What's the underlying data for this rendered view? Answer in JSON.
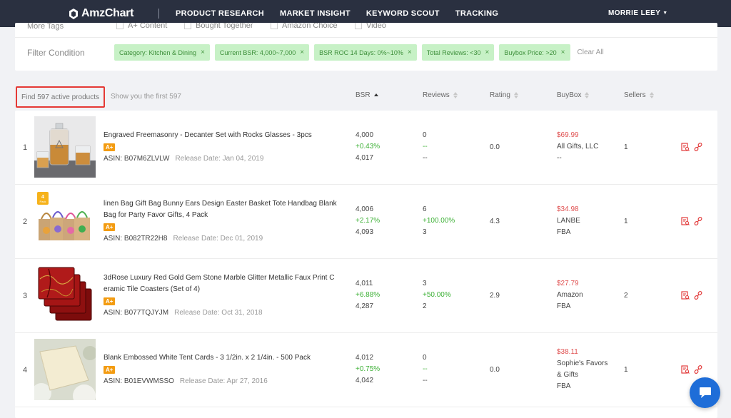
{
  "nav": {
    "logo": "AmzChart",
    "items": [
      "PRODUCT RESEARCH",
      "MARKET INSIGHT",
      "KEYWORD SCOUT",
      "TRACKING"
    ],
    "user": "MORRIE LEEY"
  },
  "filters": {
    "more_tags_label": "More Tags",
    "more_tags": [
      "A+ Content",
      "Bought Together",
      "Amazon Choice",
      "Video"
    ],
    "condition_label": "Filter Condition",
    "chips": [
      "Category: Kitchen & Dining",
      "Current BSR: 4,000~7,000",
      "BSR ROC 14 Days: 0%~10%",
      "Total Reviews: <30",
      "Buybox Price: >20"
    ],
    "clear_all": "Clear All"
  },
  "results": {
    "found": "Find 597 active products",
    "show_first": "Show you the first 597"
  },
  "columns": {
    "bsr": "BSR",
    "reviews": "Reviews",
    "rating": "Rating",
    "buybox": "BuyBox",
    "sellers": "Sellers"
  },
  "products": [
    {
      "rank": "1",
      "title_lines": [
        "Engraved Freemasonry - Decanter Set with Rocks Glasses - 3pcs"
      ],
      "badge": "A+",
      "asin": "ASIN: B07M6ZLVLW",
      "release": "Release Date: Jan 04, 2019",
      "bsr": [
        "4,000",
        "+0.43%",
        "4,017"
      ],
      "reviews": [
        "0",
        "--",
        "--"
      ],
      "rating": "0.0",
      "buybox": [
        "$69.99",
        "All Gifts, LLC",
        "--"
      ],
      "sellers": "1"
    },
    {
      "rank": "2",
      "title_lines": [
        "linen Bag Gift Bag Bunny Ears Design Easter Basket Tote Handbag Blank",
        "Bag for Party Favor Gifts, 4 Pack"
      ],
      "badge": "A+",
      "asin": "ASIN: B082TR22H8",
      "release": "Release Date: Dec 01, 2019",
      "bsr": [
        "4,006",
        "+2.17%",
        "4,093"
      ],
      "reviews": [
        "6",
        "+100.00%",
        "3"
      ],
      "rating": "4.3",
      "buybox": [
        "$34.98",
        "LANBE",
        "FBA"
      ],
      "sellers": "1",
      "thumb_badge": "4 Pack"
    },
    {
      "rank": "3",
      "title_lines": [
        "3dRose Luxury Red Gold Gem Stone Marble Glitter Metallic Faux Print C",
        "eramic Tile Coasters (Set of 4)"
      ],
      "badge": "A+",
      "asin": "ASIN: B077TQJYJM",
      "release": "Release Date: Oct 31, 2018",
      "bsr": [
        "4,011",
        "+6.88%",
        "4,287"
      ],
      "reviews": [
        "3",
        "+50.00%",
        "2"
      ],
      "rating": "2.9",
      "buybox": [
        "$27.79",
        "Amazon",
        "FBA"
      ],
      "sellers": "2"
    },
    {
      "rank": "4",
      "title_lines": [
        "Blank Embossed White Tent Cards - 3 1/2in. x 2 1/4in. - 500 Pack"
      ],
      "badge": "A+",
      "asin": "ASIN: B01EVWMSSO",
      "release": "Release Date: Apr 27, 2016",
      "bsr": [
        "4,012",
        "+0.75%",
        "4,042"
      ],
      "reviews": [
        "0",
        "--",
        "--"
      ],
      "rating": "0.0",
      "buybox": [
        "$38.11",
        "Sophie's Favors",
        "& Gifts",
        "FBA"
      ],
      "sellers": "1"
    }
  ],
  "colors": {
    "nav_bg": "#2a3040",
    "chip_bg": "#c7f1c6",
    "chip_text": "#3d8f3a",
    "positive": "#3cb035",
    "price": "#e05252",
    "badge": "#f39c12",
    "highlight_border": "#e53935",
    "chat": "#1e6dd8"
  },
  "icons": [
    "logo-icon",
    "caret-down-icon",
    "sort-icon",
    "detail-icon",
    "link-icon",
    "chat-icon",
    "close-icon"
  ]
}
